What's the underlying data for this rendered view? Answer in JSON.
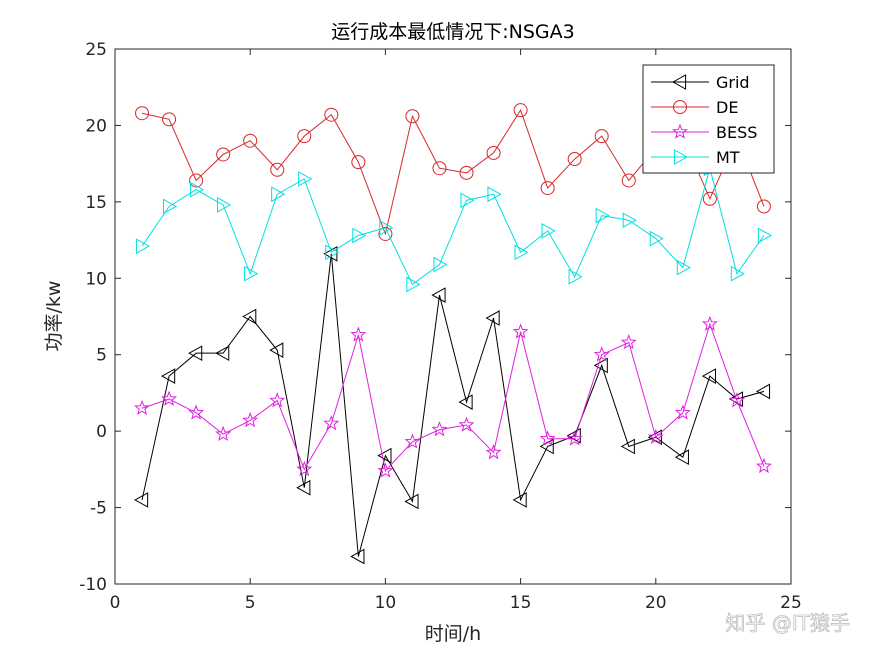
{
  "chart_data": {
    "type": "line",
    "title": "运行成本最低情况下:NSGA3",
    "xlabel": "时间/h",
    "ylabel": "功率/kw",
    "xlim": [
      0,
      25
    ],
    "ylim": [
      -10,
      25
    ],
    "xticks": [
      0,
      5,
      10,
      15,
      20,
      25
    ],
    "yticks": [
      -10,
      -5,
      0,
      5,
      10,
      15,
      20,
      25
    ],
    "grid": false,
    "legend_position": "top-right",
    "x": [
      1,
      2,
      3,
      4,
      5,
      6,
      7,
      8,
      9,
      10,
      11,
      12,
      13,
      14,
      15,
      16,
      17,
      18,
      19,
      20,
      21,
      22,
      23,
      24
    ],
    "series": [
      {
        "name": "Grid",
        "color": "#000000",
        "marker": "triangle-left",
        "values": [
          -4.5,
          3.6,
          5.1,
          5.1,
          7.5,
          5.3,
          -3.7,
          11.6,
          -8.2,
          -1.6,
          -4.6,
          8.9,
          1.9,
          7.4,
          -4.5,
          -1.0,
          -0.3,
          4.3,
          -1.0,
          -0.4,
          -1.7,
          3.6,
          2.1,
          2.6
        ]
      },
      {
        "name": "DE",
        "color": "#d62728",
        "marker": "circle",
        "values": [
          20.8,
          20.4,
          16.4,
          18.1,
          19.0,
          17.1,
          19.3,
          20.7,
          17.6,
          12.9,
          20.6,
          17.2,
          16.9,
          18.2,
          21.0,
          15.9,
          17.8,
          19.3,
          16.4,
          18.5,
          19.3,
          15.2,
          19.2,
          14.7
        ]
      },
      {
        "name": "BESS",
        "color": "#e020e0",
        "marker": "star",
        "values": [
          1.5,
          2.1,
          1.2,
          -0.2,
          0.7,
          2.0,
          -2.5,
          0.5,
          6.3,
          -2.6,
          -0.7,
          0.1,
          0.4,
          -1.4,
          6.5,
          -0.5,
          -0.5,
          5.0,
          5.8,
          -0.4,
          1.2,
          7.0,
          2.0,
          -2.3
        ]
      },
      {
        "name": "MT",
        "color": "#00e0e0",
        "marker": "triangle-right",
        "values": [
          12.1,
          14.7,
          15.8,
          14.8,
          10.3,
          15.5,
          16.5,
          11.7,
          12.8,
          13.3,
          9.6,
          10.9,
          15.1,
          15.5,
          11.7,
          13.1,
          10.1,
          14.1,
          13.8,
          12.6,
          10.7,
          17.2,
          10.3,
          12.8
        ]
      }
    ]
  },
  "watermark": "知乎 @IT猿手"
}
